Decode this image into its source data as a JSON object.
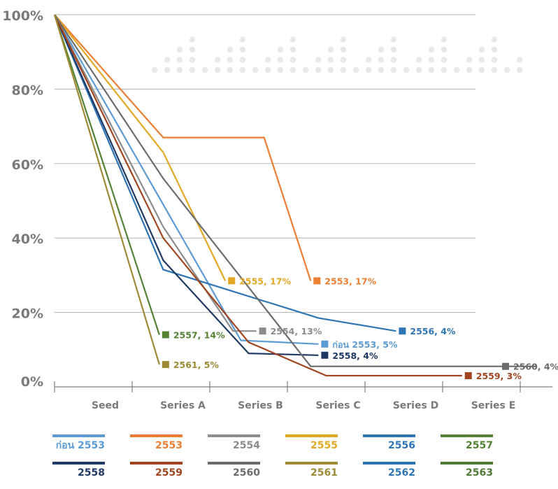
{
  "colors": {
    "grid": "#b3b3b3",
    "axis": "#7f7f7f",
    "tick_text": "#7a7a7a",
    "dots": "#e8e8e8"
  },
  "chart_data": {
    "type": "line",
    "title": "",
    "xlabel": "",
    "ylabel": "",
    "x_categories": [
      "Seed",
      "Series A",
      "Series B",
      "Series C",
      "Series D",
      "Series E"
    ],
    "yticks": [
      "0%",
      "20%",
      "40%",
      "60%",
      "80%",
      "100%"
    ],
    "ylim": [
      0,
      100
    ],
    "grid": true,
    "legend_position": "bottom",
    "series": [
      {
        "name": "ก่อน 2553",
        "color": "#5b9bd5",
        "label": "ก่อน 2553, 5%",
        "points": [
          [
            0,
            100
          ],
          [
            1.4,
            49
          ],
          [
            2.4,
            12.5
          ],
          [
            3.4,
            11.5
          ]
        ]
      },
      {
        "name": "2553",
        "color": "#ed7d31",
        "label": "2553, 17%",
        "points": [
          [
            0,
            100
          ],
          [
            1.4,
            67
          ],
          [
            2.7,
            67
          ],
          [
            3.3,
            28.5
          ]
        ]
      },
      {
        "name": "2554",
        "color": "#8c8c8c",
        "label": "2554, 13%",
        "points": [
          [
            0,
            100
          ],
          [
            1.4,
            43
          ],
          [
            2.3,
            15
          ],
          [
            2.6,
            15
          ]
        ]
      },
      {
        "name": "2555",
        "color": "#e3a823",
        "label": "2555, 17%",
        "points": [
          [
            0,
            100
          ],
          [
            1.4,
            63
          ],
          [
            2.2,
            28.5
          ]
        ]
      },
      {
        "name": "2556",
        "color": "#2e75b6",
        "label": "2556, 4%",
        "points": [
          [
            0,
            100
          ],
          [
            1.4,
            31.5
          ],
          [
            3.4,
            18.5
          ],
          [
            4.4,
            15
          ]
        ]
      },
      {
        "name": "2557",
        "color": "#548235",
        "label": "2557, 14%",
        "points": [
          [
            0,
            100
          ],
          [
            1.35,
            14
          ]
        ]
      },
      {
        "name": "2558",
        "color": "#1f3864",
        "label": "2558, 4%",
        "points": [
          [
            0,
            100
          ],
          [
            1.4,
            34
          ],
          [
            2.5,
            9
          ],
          [
            3.4,
            8.5
          ]
        ]
      },
      {
        "name": "2559",
        "color": "#a0451f",
        "label": "2559, 3%",
        "points": [
          [
            0,
            100
          ],
          [
            1.4,
            40
          ],
          [
            2.5,
            12
          ],
          [
            3.5,
            3
          ],
          [
            5.25,
            3
          ]
        ]
      },
      {
        "name": "2560",
        "color": "#6b6b6b",
        "label": "2560, 4%",
        "points": [
          [
            0,
            100
          ],
          [
            1.4,
            56
          ],
          [
            3.3,
            5.5
          ],
          [
            6.2,
            5.5
          ]
        ]
      },
      {
        "name": "2561",
        "color": "#9c8a35",
        "label": "2561, 5%",
        "points": [
          [
            0,
            100
          ],
          [
            1.35,
            6
          ]
        ]
      },
      {
        "name": "2562",
        "color": "#2e75b6",
        "label": "",
        "points": []
      },
      {
        "name": "2563",
        "color": "#4e7a34",
        "label": "",
        "points": []
      }
    ]
  }
}
